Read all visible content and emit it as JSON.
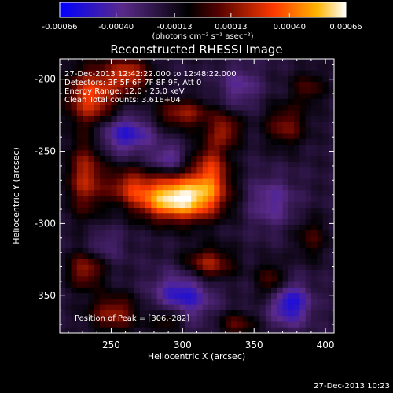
{
  "colorbar": {
    "tick_labels": [
      "-0.00066",
      "-0.00040",
      "-0.00013",
      "0.00013",
      "0.00040",
      "0.00066"
    ],
    "unit_label": "(photons cm⁻² s⁻¹ asec⁻²)"
  },
  "chart_data": {
    "type": "heatmap",
    "title": "Reconstructed RHESSI Image",
    "xlabel": "Heliocentric X (arcsec)",
    "ylabel": "Heliocentric Y (arcsec)",
    "xlim": [
      214,
      406
    ],
    "ylim": [
      -376,
      -186
    ],
    "x_ticks": [
      250,
      300,
      350,
      400
    ],
    "y_ticks": [
      -200,
      -250,
      -300,
      -350
    ],
    "zlim": [
      -0.00066,
      0.00066
    ],
    "annotations": {
      "time_range": "27-Dec-2013 12:42:22.000 to 12:48:22.000",
      "detectors": "Detectors: 3F 5F 6F 7F 8F 9F, Att 0",
      "energy_range": "Energy Range: 12.0 - 25.0 keV",
      "clean": "Clean    Total counts: 3.61E+04",
      "peak": "Position of Peak = [306,-282]"
    },
    "peak_position": [
      306,
      -282
    ],
    "sources": [
      {
        "x": 306,
        "y": -282,
        "amp": 0.00066,
        "sx": 16,
        "sy": 11
      },
      {
        "x": 284,
        "y": -283,
        "amp": 0.00045,
        "sx": 14,
        "sy": 10
      },
      {
        "x": 320,
        "y": -262,
        "amp": 0.0004,
        "sx": 9,
        "sy": 14
      },
      {
        "x": 262,
        "y": -274,
        "amp": 0.00035,
        "sx": 11,
        "sy": 9
      },
      {
        "x": 232,
        "y": -268,
        "amp": 0.0004,
        "sx": 9,
        "sy": 18
      },
      {
        "x": 236,
        "y": -212,
        "amp": 0.0005,
        "sx": 12,
        "sy": 14
      },
      {
        "x": 262,
        "y": -197,
        "amp": 0.00042,
        "sx": 11,
        "sy": 9
      },
      {
        "x": 300,
        "y": -224,
        "amp": 0.00035,
        "sx": 14,
        "sy": 7
      },
      {
        "x": 330,
        "y": -235,
        "amp": 0.00032,
        "sx": 8,
        "sy": 8
      },
      {
        "x": 372,
        "y": -232,
        "amp": 0.0003,
        "sx": 10,
        "sy": 10
      },
      {
        "x": 388,
        "y": -206,
        "amp": 0.00022,
        "sx": 8,
        "sy": 8
      },
      {
        "x": 318,
        "y": -328,
        "amp": 0.00038,
        "sx": 12,
        "sy": 8
      },
      {
        "x": 232,
        "y": -332,
        "amp": 0.00035,
        "sx": 9,
        "sy": 9
      },
      {
        "x": 252,
        "y": -362,
        "amp": 0.00035,
        "sx": 12,
        "sy": 9
      },
      {
        "x": 290,
        "y": -366,
        "amp": 0.00028,
        "sx": 8,
        "sy": 6
      },
      {
        "x": 338,
        "y": -370,
        "amp": 0.00025,
        "sx": 9,
        "sy": 6
      },
      {
        "x": 362,
        "y": -340,
        "amp": 0.00025,
        "sx": 7,
        "sy": 9
      },
      {
        "x": 390,
        "y": -310,
        "amp": 0.0002,
        "sx": 8,
        "sy": 10
      },
      {
        "x": 260,
        "y": -238,
        "amp": -0.00035,
        "sx": 14,
        "sy": 9
      },
      {
        "x": 290,
        "y": -255,
        "amp": -0.00025,
        "sx": 8,
        "sy": 6
      },
      {
        "x": 300,
        "y": -350,
        "amp": -0.00035,
        "sx": 14,
        "sy": 12
      },
      {
        "x": 375,
        "y": -356,
        "amp": -0.0004,
        "sx": 10,
        "sy": 10
      },
      {
        "x": 362,
        "y": -285,
        "amp": -0.00022,
        "sx": 12,
        "sy": 12
      },
      {
        "x": 340,
        "y": -205,
        "amp": -0.0002,
        "sx": 10,
        "sy": 10
      },
      {
        "x": 245,
        "y": -315,
        "amp": -0.00015,
        "sx": 9,
        "sy": 8
      }
    ]
  },
  "footer": {
    "timestamp": "27-Dec-2013 10:23"
  }
}
